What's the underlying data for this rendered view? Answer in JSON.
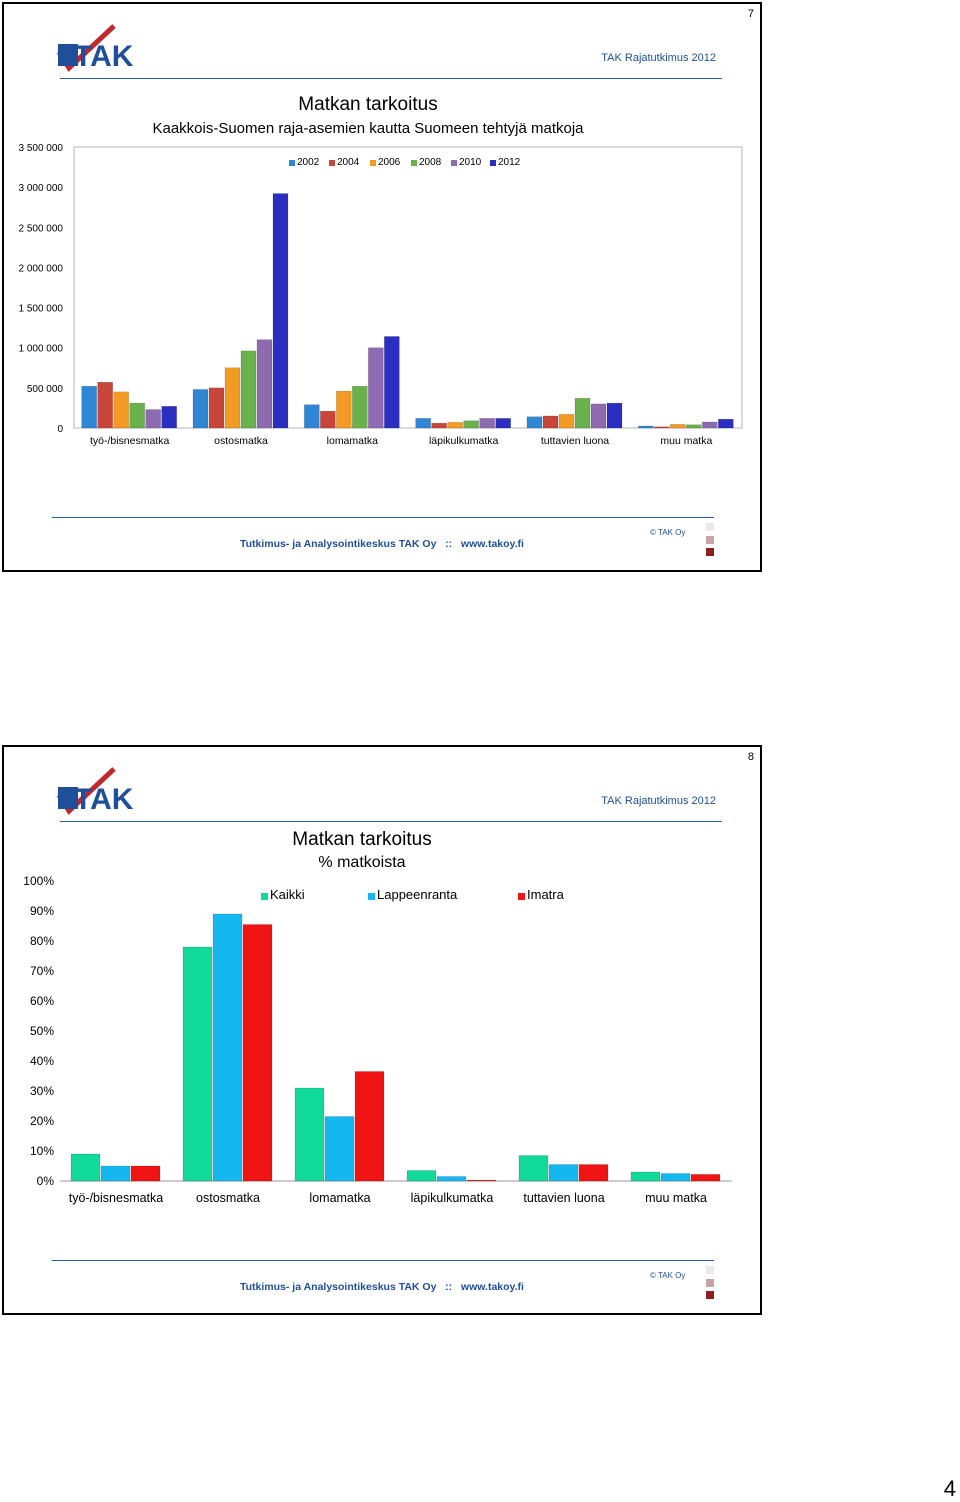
{
  "page_number": "4",
  "colors": {
    "brand_blue": "#1f4f99",
    "logo_red": "#c0282d",
    "series_2002": "#2f86d4",
    "series_2004": "#c8453a",
    "series_2006": "#f39a24",
    "series_2008": "#6ab04c",
    "series_2010": "#8e6bb0",
    "series_2012": "#2a2fbf",
    "series_kaikki": "#10d99a",
    "series_lappeenranta": "#14b7f0",
    "series_imatra": "#f01414"
  },
  "slides": [
    {
      "number": "7",
      "logo_text": "TAK",
      "tagline": "TAK Rajatutkimus 2012",
      "footer": "Tutkimus- ja Analysointikeskus TAK Oy   ::   www.takoy.fi",
      "copyright": "© TAK Oy"
    },
    {
      "number": "8",
      "logo_text": "TAK",
      "tagline": "TAK Rajatutkimus 2012",
      "footer": "Tutkimus- ja Analysointikeskus TAK Oy   ::   www.takoy.fi",
      "copyright": "© TAK Oy"
    }
  ],
  "chart_data": [
    {
      "type": "bar",
      "title": "Matkan tarkoitus",
      "subtitle": "Kaakkois-Suomen raja-asemien kautta Suomeen tehtyjä matkoja",
      "categories": [
        "työ-/bisnesmatka",
        "ostosmatka",
        "lomamatka",
        "läpikulkumatka",
        "tuttavien luona",
        "muu matka"
      ],
      "yticks": [
        "0",
        "500 000",
        "1 000 000",
        "1 500 000",
        "2 000 000",
        "2 500 000",
        "3 000 000",
        "3 500 000"
      ],
      "ylim": [
        0,
        3500000
      ],
      "legend_position": "top",
      "grid": false,
      "series": [
        {
          "name": "2002",
          "values": [
            520000,
            480000,
            290000,
            120000,
            140000,
            25000
          ]
        },
        {
          "name": "2004",
          "values": [
            570000,
            500000,
            210000,
            60000,
            150000,
            15000
          ]
        },
        {
          "name": "2006",
          "values": [
            450000,
            750000,
            460000,
            70000,
            170000,
            45000
          ]
        },
        {
          "name": "2008",
          "values": [
            310000,
            960000,
            520000,
            90000,
            370000,
            40000
          ]
        },
        {
          "name": "2010",
          "values": [
            230000,
            1100000,
            1000000,
            120000,
            300000,
            75000
          ]
        },
        {
          "name": "2012",
          "values": [
            270000,
            2920000,
            1140000,
            120000,
            310000,
            110000
          ]
        }
      ]
    },
    {
      "type": "bar",
      "title": "Matkan tarkoitus",
      "subtitle": "% matkoista",
      "categories": [
        "työ-/bisnesmatka",
        "ostosmatka",
        "lomamatka",
        "läpikulkumatka",
        "tuttavien luona",
        "muu matka"
      ],
      "yticks": [
        "0%",
        "10%",
        "20%",
        "30%",
        "40%",
        "50%",
        "60%",
        "70%",
        "80%",
        "90%",
        "100%"
      ],
      "ylim": [
        0,
        100
      ],
      "legend_position": "top",
      "grid": false,
      "series": [
        {
          "name": "Kaikki",
          "values": [
            9,
            78,
            31,
            3.5,
            8.5,
            3
          ]
        },
        {
          "name": "Lappeenranta",
          "values": [
            5,
            89,
            21.5,
            1.5,
            5.5,
            2.5
          ]
        },
        {
          "name": "Imatra",
          "values": [
            5,
            85.5,
            36.5,
            0.3,
            5.5,
            2.2
          ]
        }
      ]
    }
  ]
}
